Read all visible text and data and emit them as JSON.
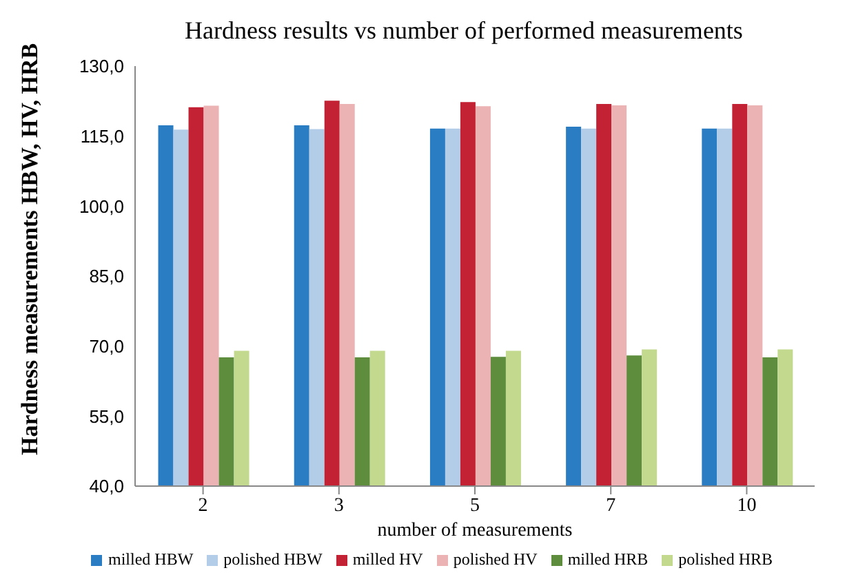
{
  "chart_data": {
    "type": "bar",
    "title": "Hardness results vs number of performed measurements",
    "xlabel": "number of measurements",
    "ylabel": "Hardness measurements HBW, HV, HRB",
    "categories": [
      "2",
      "3",
      "5",
      "7",
      "10"
    ],
    "series": [
      {
        "name": "milled HBW",
        "color": "#2a7dc2",
        "values": [
          117.3,
          117.3,
          116.6,
          117.0,
          116.6
        ]
      },
      {
        "name": "polished HBW",
        "color": "#b3cde9",
        "values": [
          116.4,
          116.5,
          116.6,
          116.6,
          116.6
        ]
      },
      {
        "name": "milled HV",
        "color": "#c22233",
        "values": [
          121.2,
          122.6,
          122.3,
          121.9,
          121.9
        ]
      },
      {
        "name": "polished HV",
        "color": "#ebb3b3",
        "values": [
          121.5,
          121.9,
          121.4,
          121.6,
          121.6
        ]
      },
      {
        "name": "milled HRB",
        "color": "#5e8d3e",
        "values": [
          67.6,
          67.6,
          67.7,
          68.0,
          67.6
        ]
      },
      {
        "name": "polished HRB",
        "color": "#c2d98e",
        "values": [
          69.0,
          69.0,
          69.0,
          69.3,
          69.3
        ]
      }
    ],
    "ylim": [
      40,
      130
    ],
    "yticks": [
      {
        "value": 40,
        "label": "40,0"
      },
      {
        "value": 55,
        "label": "55,0"
      },
      {
        "value": 70,
        "label": "70,0"
      },
      {
        "value": 85,
        "label": "85,0"
      },
      {
        "value": 100,
        "label": "100,0"
      },
      {
        "value": 115,
        "label": "115,0"
      },
      {
        "value": 130,
        "label": "130,0"
      }
    ],
    "grid": false,
    "legend": "bottom"
  }
}
